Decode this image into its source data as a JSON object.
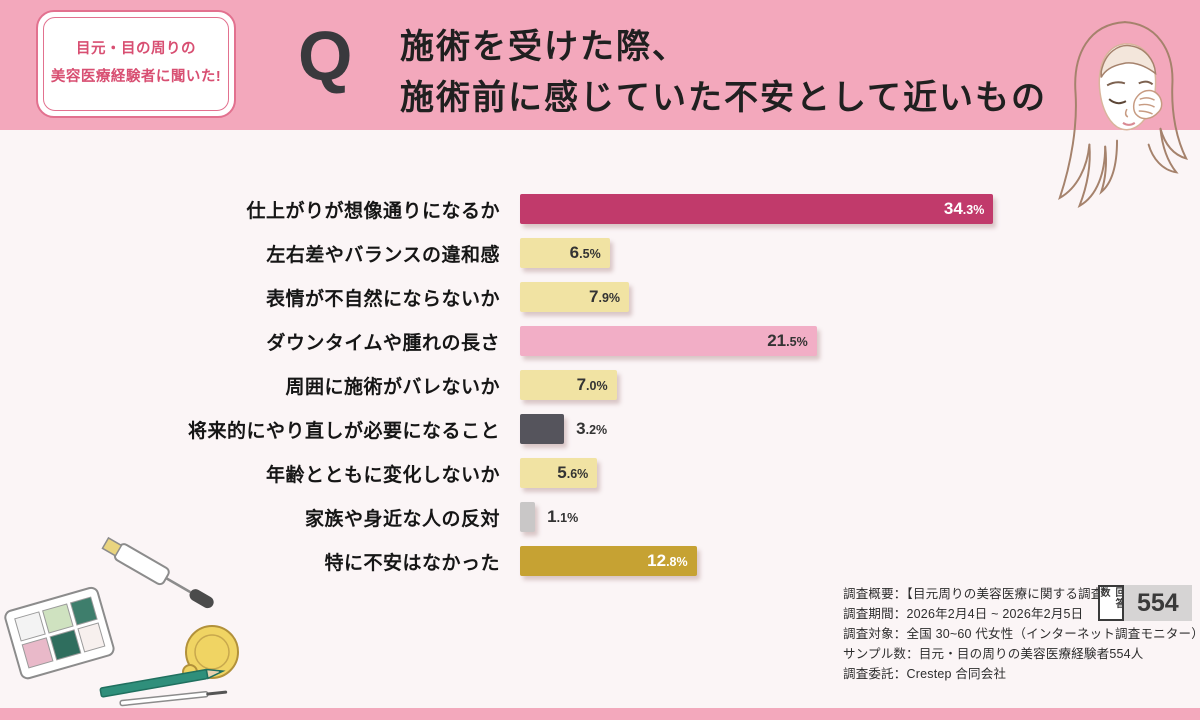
{
  "page": {
    "bg": "#fbf5f6"
  },
  "header": {
    "bg_color": "#f3a8bc",
    "badge": {
      "line1": "目元・目の周りの",
      "line2": "美容医療経験者に聞いた!"
    },
    "q_mark": "Q",
    "title_line1": "施術を受けた際、",
    "title_line2": "施術前に感じていた不安として近いもの"
  },
  "chart_data": {
    "type": "bar",
    "orientation": "horizontal",
    "title": "施術を受けた際、施術前に感じていた不安として近いもの",
    "unit": "%",
    "xlim": [
      0,
      35
    ],
    "grid": false,
    "legend": false,
    "categories": [
      "仕上がりが想像通りになるか",
      "左右差やバランスの違和感",
      "表情が不自然にならないか",
      "ダウンタイムや腫れの長さ",
      "周囲に施術がバレないか",
      "将来的にやり直しが必要になること",
      "年齢とともに変化しないか",
      "家族や身近な人の反対",
      "特に不安はなかった"
    ],
    "values": [
      34.3,
      6.5,
      7.9,
      21.5,
      7.0,
      3.2,
      5.6,
      1.1,
      12.8
    ],
    "bar_colors": [
      "#c13a6b",
      "#f1e3a3",
      "#f1e3a3",
      "#f2aec6",
      "#f1e3a3",
      "#55545c",
      "#f1e3a3",
      "#c9c7c7",
      "#c6a233"
    ],
    "value_label_inside": [
      true,
      true,
      true,
      true,
      true,
      false,
      true,
      false,
      true
    ],
    "value_label_colors": [
      "#ffffff",
      "#333333",
      "#333333",
      "#333333",
      "#333333",
      "#333333",
      "#333333",
      "#333333",
      "#ffffff"
    ]
  },
  "footer": {
    "survey_lines": [
      "調査概要：【目元周りの美容医療に関する調査】",
      "調査期間：2026年2月4日 ~ 2026年2月5日",
      "調査対象：全国 30~60 代女性（インターネット調査モニター）",
      "サンプル数：目元・目の周りの美容医療経験者554人",
      "調査委託：Crestep 合同会社"
    ],
    "respondents_label": "回答数",
    "respondents_count": "554",
    "strip_color": "#f3a8bc"
  }
}
